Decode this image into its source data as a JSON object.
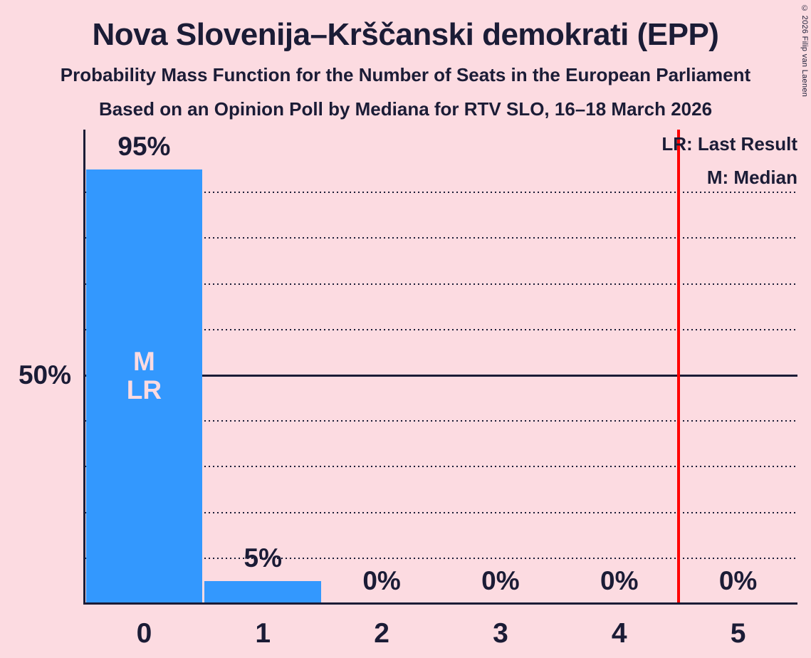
{
  "title": "Nova Slovenija–Krščanski demokrati (EPP)",
  "subtitle": "Probability Mass Function for the Number of Seats in the European Parliament",
  "source_line": "Based on an Opinion Poll by Mediana for RTV SLO, 16–18 March 2026",
  "copyright": "© 2026 Filip van Laenen",
  "legend": {
    "last_result": "LR: Last Result",
    "median": "M: Median"
  },
  "y_axis_label": "50%",
  "bar_annotations": [
    "M",
    "LR"
  ],
  "colors": {
    "background": "#fcdbe1",
    "bar": "#3398fe",
    "text": "#1b1c36",
    "last_result_line": "#ff0000",
    "bar_annotation_text": "#fcdbe1"
  },
  "chart_data": {
    "type": "bar",
    "title": "Probability Mass Function for the Number of Seats in the European Parliament",
    "categories": [
      "0",
      "1",
      "2",
      "3",
      "4",
      "5"
    ],
    "values": [
      95,
      5,
      0,
      0,
      0,
      0
    ],
    "value_labels": [
      "95%",
      "5%",
      "0%",
      "0%",
      "0%",
      "0%"
    ],
    "ylim": [
      0,
      100
    ],
    "y_solid_gridline_value": 50,
    "y_dotted_gridline_values": [
      10,
      20,
      30,
      40,
      60,
      70,
      80,
      90
    ],
    "grid": "dotted-horizontal",
    "legend_position": "top-right",
    "median_seats": 0,
    "last_result_seats": 0,
    "last_result_line_x": 4.5
  }
}
